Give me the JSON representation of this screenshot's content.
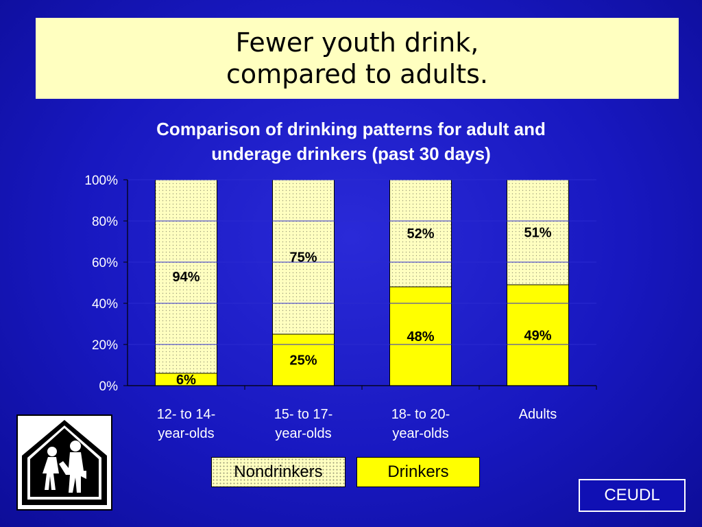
{
  "slide": {
    "title_line1": "Fewer youth drink,",
    "title_line2": "compared to adults.",
    "subtitle_line1": "Comparison of drinking patterns for adult and",
    "subtitle_line2": "underage drinkers (past 30 days)",
    "badge": "CEUDL",
    "sign_icon": "school-crossing-sign-icon"
  },
  "legend": {
    "nondrinkers": "Nondrinkers",
    "drinkers": "Drinkers"
  },
  "colors": {
    "background": "#1818c0",
    "title_box": "#ffffc0",
    "nondrinkers": "#ffffc0",
    "drinkers": "#ffff00",
    "text": "#ffffff"
  },
  "chart_data": {
    "type": "bar",
    "stacked": true,
    "title": "Comparison of drinking patterns for adult and underage drinkers (past 30 days)",
    "categories": [
      [
        "12- to 14-",
        "year-olds"
      ],
      [
        "15- to 17-",
        "year-olds"
      ],
      [
        "18- to 20-",
        "year-olds"
      ],
      [
        "Adults"
      ]
    ],
    "series": [
      {
        "name": "Drinkers",
        "values": [
          6,
          25,
          48,
          49
        ],
        "labels": [
          "6%",
          "25%",
          "48%",
          "49%"
        ]
      },
      {
        "name": "Nondrinkers",
        "values": [
          94,
          75,
          52,
          51
        ],
        "labels": [
          "94%",
          "75%",
          "52%",
          "51%"
        ]
      }
    ],
    "yticks": [
      "0%",
      "20%",
      "40%",
      "60%",
      "80%",
      "100%"
    ],
    "ylim": [
      0,
      100
    ],
    "grid": true,
    "legend_position": "bottom"
  }
}
